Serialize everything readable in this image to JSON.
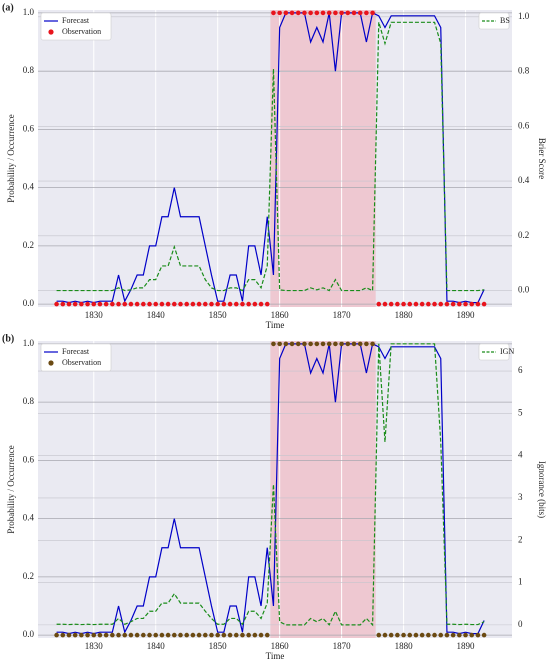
{
  "chart_data": [
    {
      "type": "line",
      "panel_label": "(a)",
      "xlabel": "Time",
      "ylabel": "Probability / Occurrence",
      "y2label": "Brier Score",
      "xlim": [
        1821,
        1897.5
      ],
      "xticks": [
        1830,
        1840,
        1850,
        1860,
        1870,
        1880,
        1890
      ],
      "ylim": [
        -0.01,
        1.01
      ],
      "yticks": [
        {
          "value": 0,
          "label": "0.0"
        },
        {
          "value": 0.2,
          "label": "0.2"
        },
        {
          "value": 0.4,
          "label": "0.4"
        },
        {
          "value": 0.6,
          "label": "0.6"
        },
        {
          "value": 0.8,
          "label": "0.8"
        },
        {
          "value": 1,
          "label": "1.0"
        }
      ],
      "y2lim": [
        -0.06,
        1.025
      ],
      "y2ticks": [
        {
          "value": 0,
          "label": "0.0"
        },
        {
          "value": 0.2,
          "label": "0.2"
        },
        {
          "value": 0.4,
          "label": "0.4"
        },
        {
          "value": 0.6,
          "label": "0.6"
        },
        {
          "value": 0.8,
          "label": "0.8"
        },
        {
          "value": 1,
          "label": "1.0"
        }
      ],
      "grid": true,
      "legend_loc": "upper left",
      "legend2_loc": "upper right",
      "x": [
        1824,
        1825,
        1826,
        1827,
        1828,
        1829,
        1830,
        1831,
        1832,
        1833,
        1834,
        1835,
        1836,
        1837,
        1838,
        1839,
        1840,
        1841,
        1842,
        1843,
        1844,
        1845,
        1846,
        1847,
        1848,
        1849,
        1850,
        1851,
        1852,
        1853,
        1854,
        1855,
        1856,
        1857,
        1858,
        1859,
        1860,
        1861,
        1862,
        1863,
        1864,
        1865,
        1866,
        1867,
        1868,
        1869,
        1870,
        1871,
        1872,
        1873,
        1874,
        1875,
        1876,
        1877,
        1878,
        1879,
        1880,
        1881,
        1882,
        1883,
        1884,
        1885,
        1886,
        1887,
        1888,
        1889,
        1890,
        1891,
        1892,
        1893
      ],
      "series": [
        {
          "name": "Forecast",
          "color": "#0000c8",
          "style": "solid",
          "values": [
            0.01,
            0.01,
            0.005,
            0.01,
            0.005,
            0.01,
            0.005,
            0.01,
            0.01,
            0.01,
            0.1,
            0.01,
            0.05,
            0.1,
            0.1,
            0.2,
            0.2,
            0.3,
            0.3,
            0.4,
            0.3,
            0.3,
            0.3,
            0.3,
            0.2,
            0.1,
            0.01,
            0.01,
            0.1,
            0.1,
            0.01,
            0.2,
            0.2,
            0.1,
            0.3,
            0.1,
            0.95,
            1,
            1,
            1,
            1,
            0.9,
            0.95,
            0.9,
            1,
            0.8,
            1,
            1,
            1,
            1,
            0.9,
            1,
            0.99,
            0.95,
            0.99,
            0.99,
            0.99,
            0.99,
            0.99,
            0.99,
            0.99,
            0.99,
            0.95,
            0.01,
            0.01,
            0.005,
            0.01,
            0.005,
            0.005,
            0.05
          ]
        },
        {
          "name": "Observation",
          "color": "#e8141c",
          "style": "dots",
          "values": [
            0,
            0,
            0,
            0,
            0,
            0,
            0,
            0,
            0,
            0,
            0,
            0,
            0,
            0,
            0,
            0,
            0,
            0,
            0,
            0,
            0,
            0,
            0,
            0,
            0,
            0,
            0,
            0,
            0,
            0,
            0,
            0,
            0,
            0,
            0,
            1,
            1,
            1,
            1,
            1,
            1,
            1,
            1,
            1,
            1,
            1,
            1,
            1,
            1,
            1,
            1,
            1,
            0,
            0,
            0,
            0,
            0,
            0,
            0,
            0,
            0,
            0,
            0,
            0,
            0,
            0,
            0,
            0,
            0,
            0
          ]
        },
        {
          "name": "BS",
          "color": "#1a8c1a",
          "style": "dashed",
          "axis": "y2",
          "values": [
            0.0001,
            0.0001,
            0,
            0.0001,
            0,
            0.0001,
            0,
            0.0001,
            0.0001,
            0.0001,
            0.01,
            0.0001,
            0.0025,
            0.01,
            0.01,
            0.04,
            0.04,
            0.09,
            0.09,
            0.16,
            0.09,
            0.09,
            0.09,
            0.09,
            0.04,
            0.01,
            0.0001,
            0.0001,
            0.01,
            0.01,
            0.0001,
            0.04,
            0.04,
            0.01,
            0.09,
            0.81,
            0.0025,
            0,
            0,
            0,
            0,
            0.01,
            0.0025,
            0.01,
            0,
            0.04,
            0,
            0,
            0,
            0,
            0.01,
            0,
            0.9801,
            0.9025,
            0.9801,
            0.9801,
            0.9801,
            0.9801,
            0.9801,
            0.9801,
            0.9801,
            0.9801,
            0.9025,
            0.0001,
            0.0001,
            0,
            0.0001,
            0,
            0,
            0.0025
          ]
        }
      ]
    },
    {
      "type": "line",
      "panel_label": "(b)",
      "xlabel": "Time",
      "ylabel": "Probability / Occurrence",
      "y2label": "Ignorance (bits)",
      "xlim": [
        1821,
        1897.5
      ],
      "xticks": [
        1830,
        1840,
        1850,
        1860,
        1870,
        1880,
        1890
      ],
      "ylim": [
        -0.01,
        1.01
      ],
      "yticks": [
        {
          "value": 0,
          "label": "0.0"
        },
        {
          "value": 0.2,
          "label": "0.2"
        },
        {
          "value": 0.4,
          "label": "0.4"
        },
        {
          "value": 0.6,
          "label": "0.6"
        },
        {
          "value": 0.8,
          "label": "0.8"
        },
        {
          "value": 1,
          "label": "1.0"
        }
      ],
      "y2lim": [
        -0.31,
        6.71
      ],
      "y2ticks": [
        0,
        1,
        2,
        3,
        4,
        5,
        6
      ],
      "grid": true,
      "legend_loc": "upper left",
      "legend2_loc": "upper right",
      "x": [
        1824,
        1825,
        1826,
        1827,
        1828,
        1829,
        1830,
        1831,
        1832,
        1833,
        1834,
        1835,
        1836,
        1837,
        1838,
        1839,
        1840,
        1841,
        1842,
        1843,
        1844,
        1845,
        1846,
        1847,
        1848,
        1849,
        1850,
        1851,
        1852,
        1853,
        1854,
        1855,
        1856,
        1857,
        1858,
        1859,
        1860,
        1861,
        1862,
        1863,
        1864,
        1865,
        1866,
        1867,
        1868,
        1869,
        1870,
        1871,
        1872,
        1873,
        1874,
        1875,
        1876,
        1877,
        1878,
        1879,
        1880,
        1881,
        1882,
        1883,
        1884,
        1885,
        1886,
        1887,
        1888,
        1889,
        1890,
        1891,
        1892,
        1893
      ],
      "series": [
        {
          "name": "Forecast",
          "color": "#0000c8",
          "style": "solid",
          "values": [
            0.01,
            0.01,
            0.005,
            0.01,
            0.005,
            0.01,
            0.005,
            0.01,
            0.01,
            0.01,
            0.1,
            0.01,
            0.05,
            0.1,
            0.1,
            0.2,
            0.2,
            0.3,
            0.3,
            0.4,
            0.3,
            0.3,
            0.3,
            0.3,
            0.2,
            0.1,
            0.01,
            0.01,
            0.1,
            0.1,
            0.01,
            0.2,
            0.2,
            0.1,
            0.3,
            0.1,
            0.95,
            1,
            1,
            1,
            1,
            0.9,
            0.95,
            0.9,
            1,
            0.8,
            1,
            1,
            1,
            1,
            0.9,
            1,
            0.99,
            0.95,
            0.99,
            0.99,
            0.99,
            0.99,
            0.99,
            0.99,
            0.99,
            0.99,
            0.95,
            0.01,
            0.01,
            0.005,
            0.01,
            0.005,
            0.005,
            0.05
          ]
        },
        {
          "name": "Observation",
          "color": "#6b4a12",
          "style": "dots",
          "values": [
            0,
            0,
            0,
            0,
            0,
            0,
            0,
            0,
            0,
            0,
            0,
            0,
            0,
            0,
            0,
            0,
            0,
            0,
            0,
            0,
            0,
            0,
            0,
            0,
            0,
            0,
            0,
            0,
            0,
            0,
            0,
            0,
            0,
            0,
            0,
            1,
            1,
            1,
            1,
            1,
            1,
            1,
            1,
            1,
            1,
            1,
            1,
            1,
            1,
            1,
            1,
            1,
            0,
            0,
            0,
            0,
            0,
            0,
            0,
            0,
            0,
            0,
            0,
            0,
            0,
            0,
            0,
            0,
            0,
            0
          ]
        },
        {
          "name": "IGN",
          "color": "#1a8c1a",
          "style": "dashed",
          "axis": "y2",
          "values": [
            0.0145,
            0.0145,
            0.0072,
            0.0145,
            0.0072,
            0.0145,
            0.0072,
            0.0145,
            0.0145,
            0.0145,
            0.152,
            0.0145,
            0.074,
            0.152,
            0.152,
            0.322,
            0.322,
            0.515,
            0.515,
            0.737,
            0.515,
            0.515,
            0.515,
            0.515,
            0.322,
            0.152,
            0.0145,
            0.0145,
            0.152,
            0.152,
            0.0145,
            0.322,
            0.322,
            0.152,
            0.515,
            3.322,
            0.074,
            0,
            0,
            0,
            0,
            0.152,
            0.074,
            0.152,
            0,
            0.322,
            0,
            0,
            0,
            0,
            0.152,
            0,
            6.644,
            4.322,
            6.644,
            6.644,
            6.644,
            6.644,
            6.644,
            6.644,
            6.644,
            6.644,
            4.322,
            0.0145,
            0.0145,
            0.0072,
            0.0145,
            0.0072,
            0.0072,
            0.074
          ]
        }
      ]
    }
  ]
}
